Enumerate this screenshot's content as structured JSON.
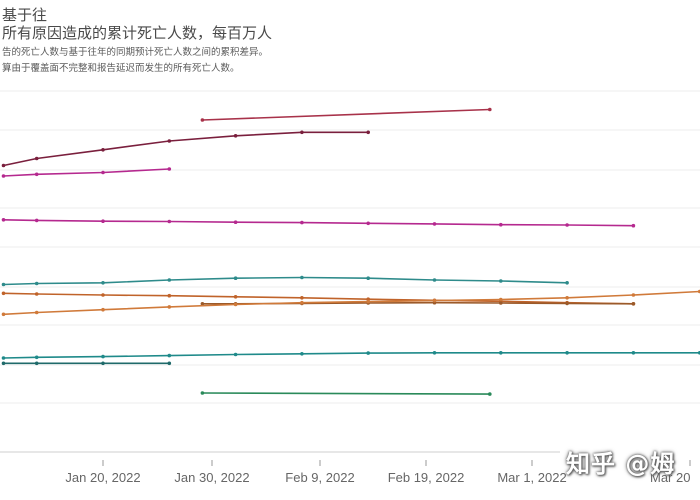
{
  "header": {
    "title_line1": "基于往",
    "title_line2": "所有原因造成的累计死亡人数，每百万人",
    "subtitle_line1": "告的死亡人数与基于往年的同期预计死亡人数之间的累积差异。",
    "subtitle_line2": "算由于覆盖面不完整和报告延迟而发生的所有死亡人数。"
  },
  "watermark": "知乎 @姆",
  "chart_data": {
    "type": "line",
    "title": "",
    "xlabel": "",
    "ylabel": "",
    "x_ticks": [
      "Jan 20, 2022",
      "Jan 30, 2022",
      "Feb 9, 2022",
      "Feb 19, 2022",
      "Mar 1, 2022",
      "Mar 20"
    ],
    "x_range": [
      "2022-01-11",
      "2022-03-15"
    ],
    "y_range": [
      0,
      100
    ],
    "grid": true,
    "series": [
      {
        "color": "#a8324a",
        "x": [
          "2022-01-29",
          "2022-02-24"
        ],
        "y": [
          92,
          95
        ]
      },
      {
        "color": "#7a1f3d",
        "x": [
          "2022-01-11",
          "2022-01-14",
          "2022-01-20",
          "2022-01-26",
          "2022-02-01",
          "2022-02-07",
          "2022-02-13"
        ],
        "y": [
          79,
          81,
          83.5,
          86,
          87.5,
          88.5,
          88.5
        ]
      },
      {
        "color": "#b5298f",
        "x": [
          "2022-01-11",
          "2022-01-14",
          "2022-01-20",
          "2022-01-26"
        ],
        "y": [
          76,
          76.5,
          77,
          78
        ]
      },
      {
        "color": "#b5298f",
        "x": [
          "2022-01-11",
          "2022-01-14",
          "2022-01-20",
          "2022-01-26",
          "2022-02-01",
          "2022-02-07",
          "2022-02-13",
          "2022-02-19",
          "2022-02-25",
          "2022-03-03",
          "2022-03-09"
        ],
        "y": [
          63.5,
          63.3,
          63.1,
          63,
          62.8,
          62.7,
          62.5,
          62.3,
          62.1,
          62,
          61.8
        ]
      },
      {
        "color": "#2e8b8b",
        "x": [
          "2022-01-11",
          "2022-01-14",
          "2022-01-20",
          "2022-01-26",
          "2022-02-01",
          "2022-02-07",
          "2022-02-13",
          "2022-02-19",
          "2022-02-25",
          "2022-03-03"
        ],
        "y": [
          45,
          45.3,
          45.5,
          46.3,
          46.8,
          47,
          46.8,
          46.3,
          46,
          45.5
        ]
      },
      {
        "color": "#c0632a",
        "x": [
          "2022-01-11",
          "2022-01-14",
          "2022-01-20",
          "2022-01-26",
          "2022-02-01",
          "2022-02-07",
          "2022-02-13",
          "2022-02-19",
          "2022-02-25",
          "2022-03-03",
          "2022-03-09"
        ],
        "y": [
          42.5,
          42.3,
          42,
          41.8,
          41.5,
          41.2,
          40.8,
          40.5,
          40.2,
          39.8,
          39.5
        ]
      },
      {
        "color": "#9b5a2a",
        "x": [
          "2022-01-29",
          "2022-02-01",
          "2022-02-07",
          "2022-02-13",
          "2022-02-19",
          "2022-02-25",
          "2022-03-03",
          "2022-03-09"
        ],
        "y": [
          39.5,
          39.5,
          39.6,
          39.7,
          39.8,
          39.7,
          39.6,
          39.5
        ]
      },
      {
        "color": "#d07a3a",
        "x": [
          "2022-01-11",
          "2022-01-14",
          "2022-01-20",
          "2022-01-26",
          "2022-02-01",
          "2022-02-07",
          "2022-02-13",
          "2022-02-19",
          "2022-02-25",
          "2022-03-03",
          "2022-03-09",
          "2022-03-15"
        ],
        "y": [
          36.5,
          37,
          37.8,
          38.6,
          39.3,
          39.8,
          40.1,
          40.4,
          40.7,
          41.2,
          42,
          43
        ]
      },
      {
        "color": "#1f8a8a",
        "x": [
          "2022-01-11",
          "2022-01-14",
          "2022-01-20",
          "2022-01-26",
          "2022-02-01",
          "2022-02-07",
          "2022-02-13",
          "2022-02-19",
          "2022-02-25",
          "2022-03-03",
          "2022-03-09",
          "2022-03-15"
        ],
        "y": [
          24,
          24.2,
          24.4,
          24.7,
          25,
          25.2,
          25.4,
          25.5,
          25.5,
          25.5,
          25.5,
          25.5
        ]
      },
      {
        "color": "#1f6a6a",
        "x": [
          "2022-01-11",
          "2022-01-14",
          "2022-01-20",
          "2022-01-26"
        ],
        "y": [
          22.5,
          22.5,
          22.5,
          22.5
        ]
      },
      {
        "color": "#2a8a5a",
        "x": [
          "2022-01-29",
          "2022-02-24"
        ],
        "y": [
          14,
          13.7
        ]
      }
    ]
  }
}
